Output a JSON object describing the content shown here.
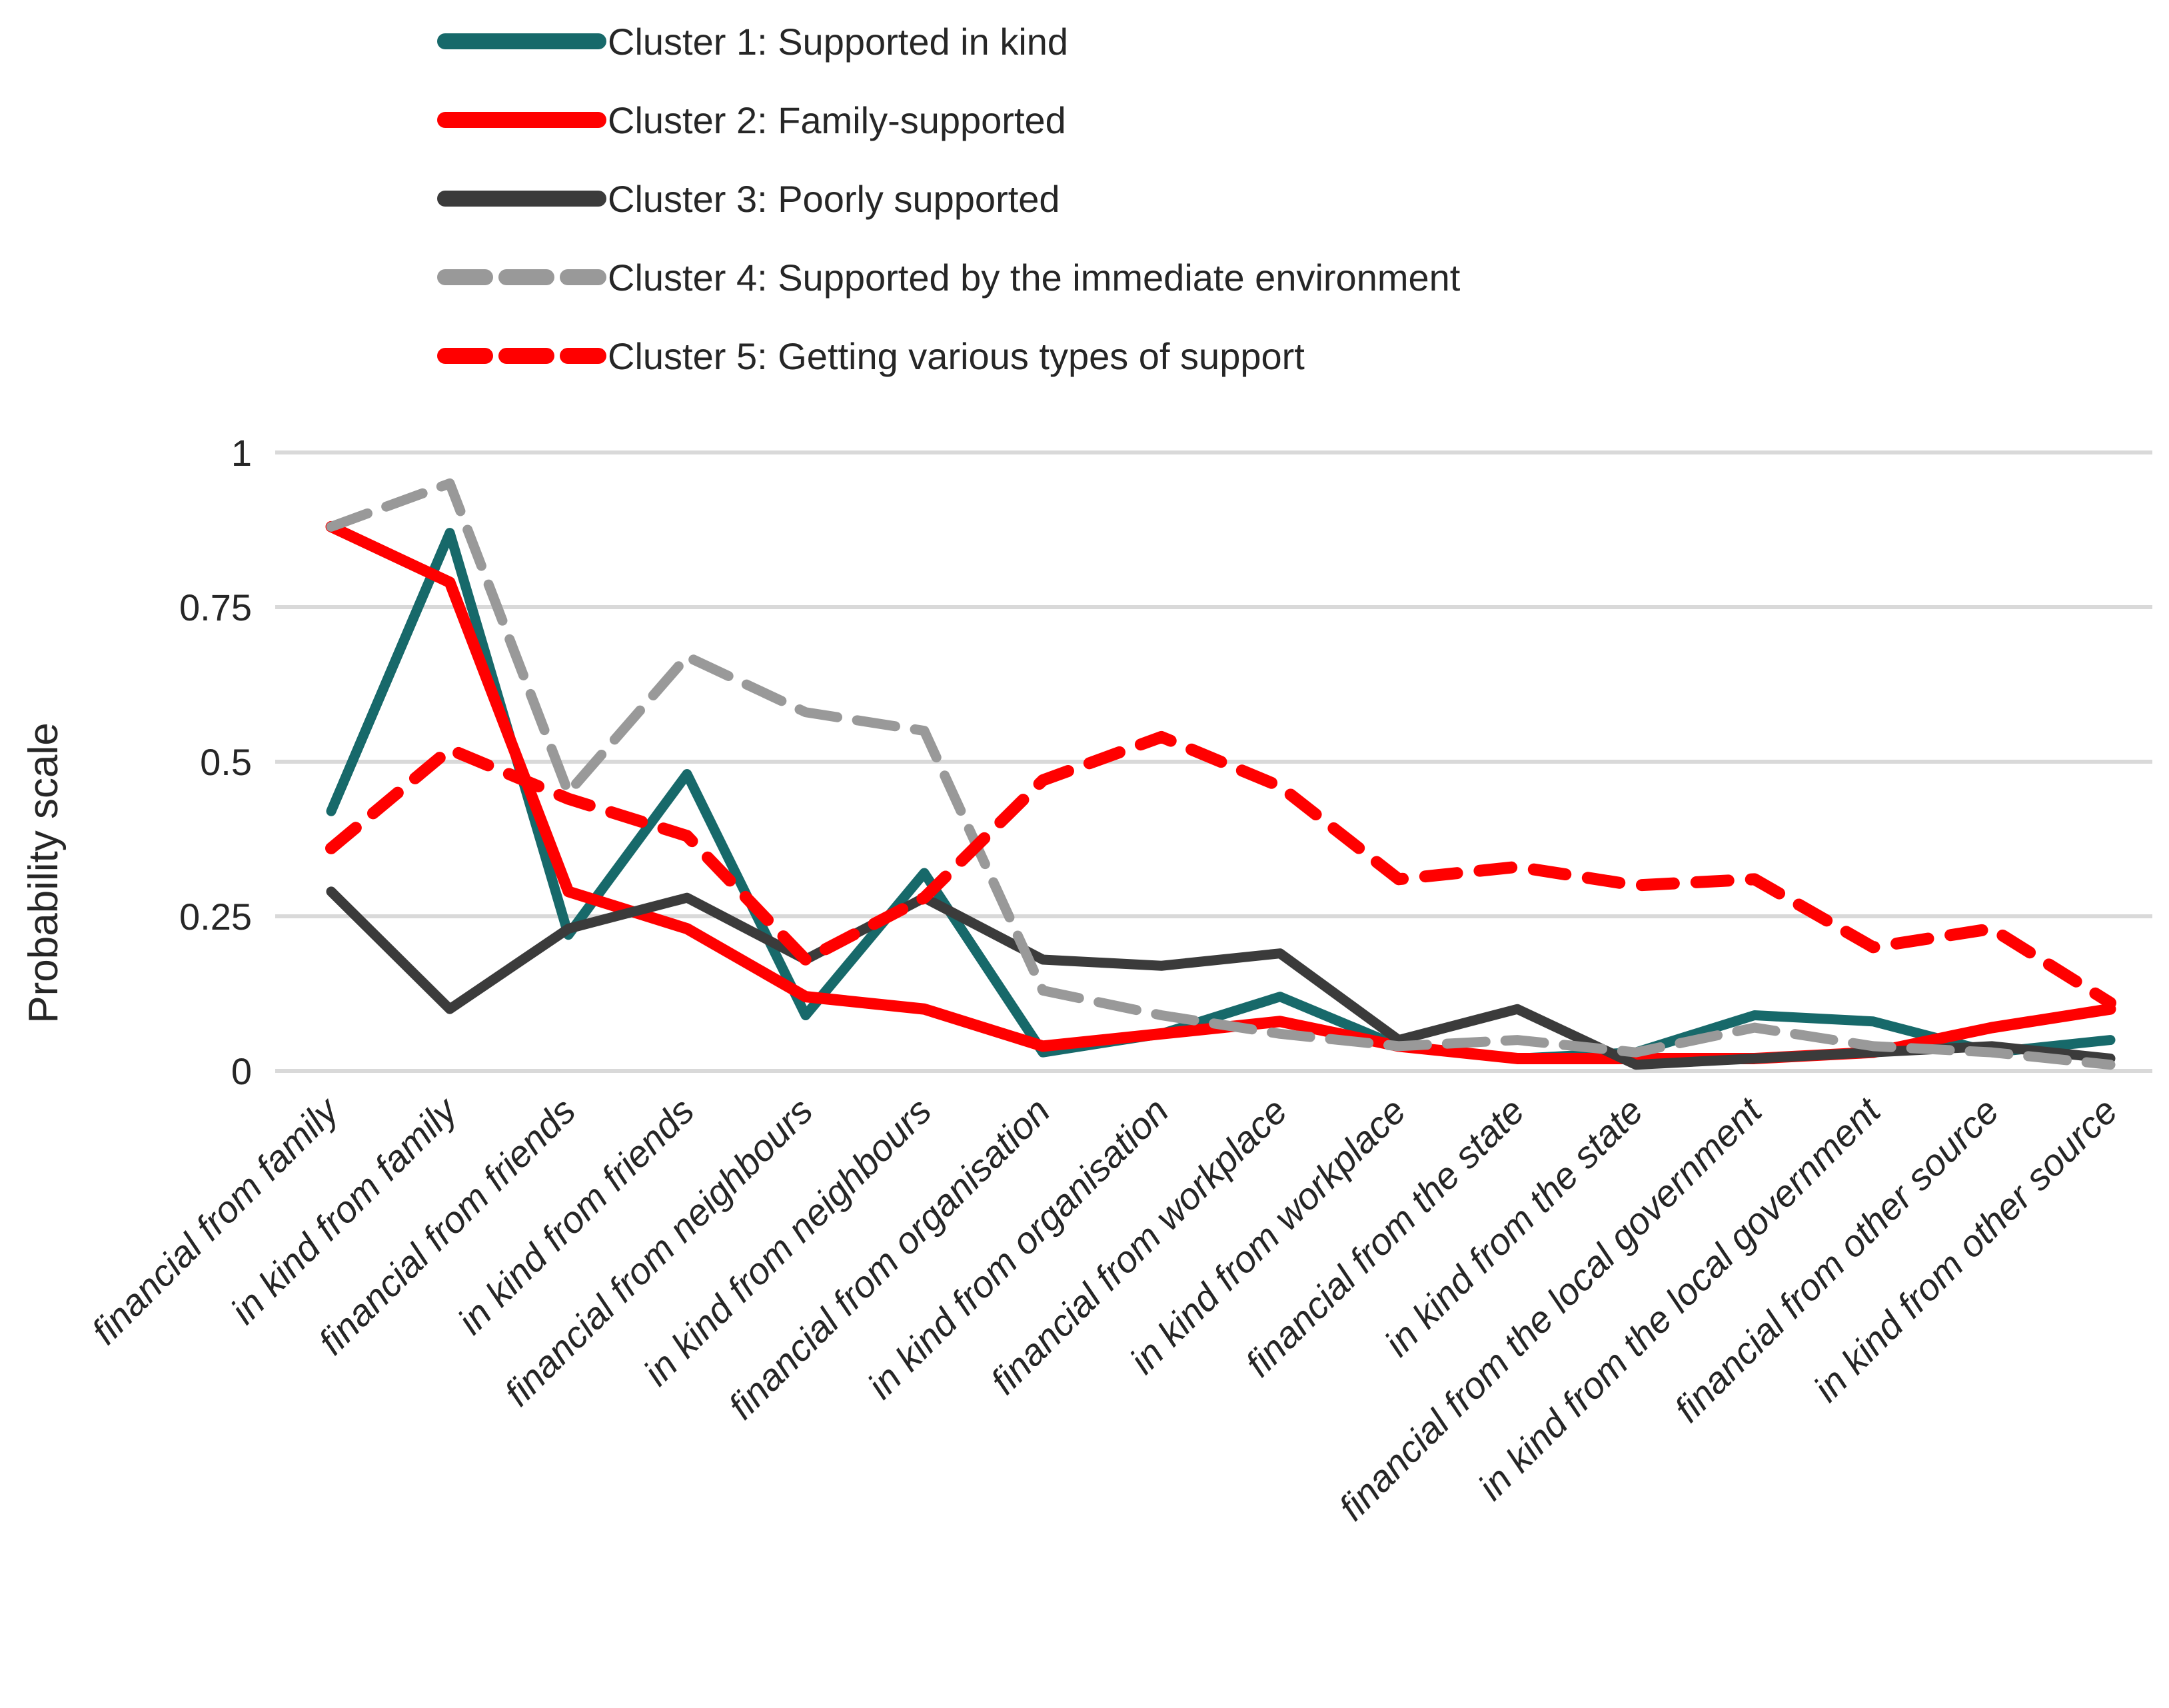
{
  "chart_data": {
    "type": "line",
    "title": "",
    "ylabel": "Probability scale",
    "xlabel": "",
    "ylim": [
      0,
      1
    ],
    "grid": true,
    "legend_position": "top-left",
    "gridline_color": "#d9d9d9",
    "label_color": "#262626",
    "yticks": [
      {
        "label": "1",
        "value": 1
      },
      {
        "label": "0.75",
        "value": 0.75
      },
      {
        "label": "0.5",
        "value": 0.5
      },
      {
        "label": "0.25",
        "value": 0.25
      },
      {
        "label": "0",
        "value": 0
      }
    ],
    "categories": [
      "financial from family",
      "in kind from family",
      "financial from friends",
      "in kind from friends",
      "financial from neighbours",
      "in kind from neighbours",
      "financial from organisation",
      "in kind from organisation",
      "financial from workplace",
      "in kind from workplace",
      "financial from the state",
      "in kind from the state",
      "financial from the local government",
      "in kind from the local government",
      "financial from other source",
      "in kind from other source"
    ],
    "series": [
      {
        "name": "Cluster 1: Supported in kind",
        "color": "#17696A",
        "dash": "solid",
        "stroke_width": 15,
        "values": [
          0.42,
          0.87,
          0.22,
          0.48,
          0.09,
          0.32,
          0.03,
          0.06,
          0.12,
          0.04,
          0.02,
          0.03,
          0.09,
          0.08,
          0.03,
          0.05
        ]
      },
      {
        "name": "Cluster 2: Family-supported",
        "color": "#FF0000",
        "dash": "solid",
        "stroke_width": 17,
        "values": [
          0.88,
          0.79,
          0.29,
          0.23,
          0.12,
          0.1,
          0.04,
          0.06,
          0.08,
          0.04,
          0.02,
          0.02,
          0.02,
          0.03,
          0.07,
          0.1
        ]
      },
      {
        "name": "Cluster 3: Poorly supported",
        "color": "#3B3B3B",
        "dash": "solid",
        "stroke_width": 15,
        "values": [
          0.29,
          0.1,
          0.23,
          0.28,
          0.18,
          0.28,
          0.18,
          0.17,
          0.19,
          0.05,
          0.1,
          0.01,
          0.02,
          0.03,
          0.04,
          0.02
        ]
      },
      {
        "name": "Cluster 4: Supported by the immediate environment",
        "color": "#999999",
        "dash": "dashed",
        "stroke_width": 15,
        "values": [
          0.88,
          0.95,
          0.45,
          0.67,
          0.58,
          0.55,
          0.13,
          0.09,
          0.06,
          0.04,
          0.05,
          0.03,
          0.07,
          0.04,
          0.03,
          0.01
        ]
      },
      {
        "name": "Cluster 5: Getting various types of support",
        "color": "#FF0000",
        "dash": "dashed-long",
        "stroke_width": 18,
        "values": [
          0.36,
          0.52,
          0.44,
          0.38,
          0.18,
          0.28,
          0.47,
          0.54,
          0.46,
          0.31,
          0.33,
          0.3,
          0.31,
          0.2,
          0.23,
          0.11
        ]
      }
    ]
  }
}
